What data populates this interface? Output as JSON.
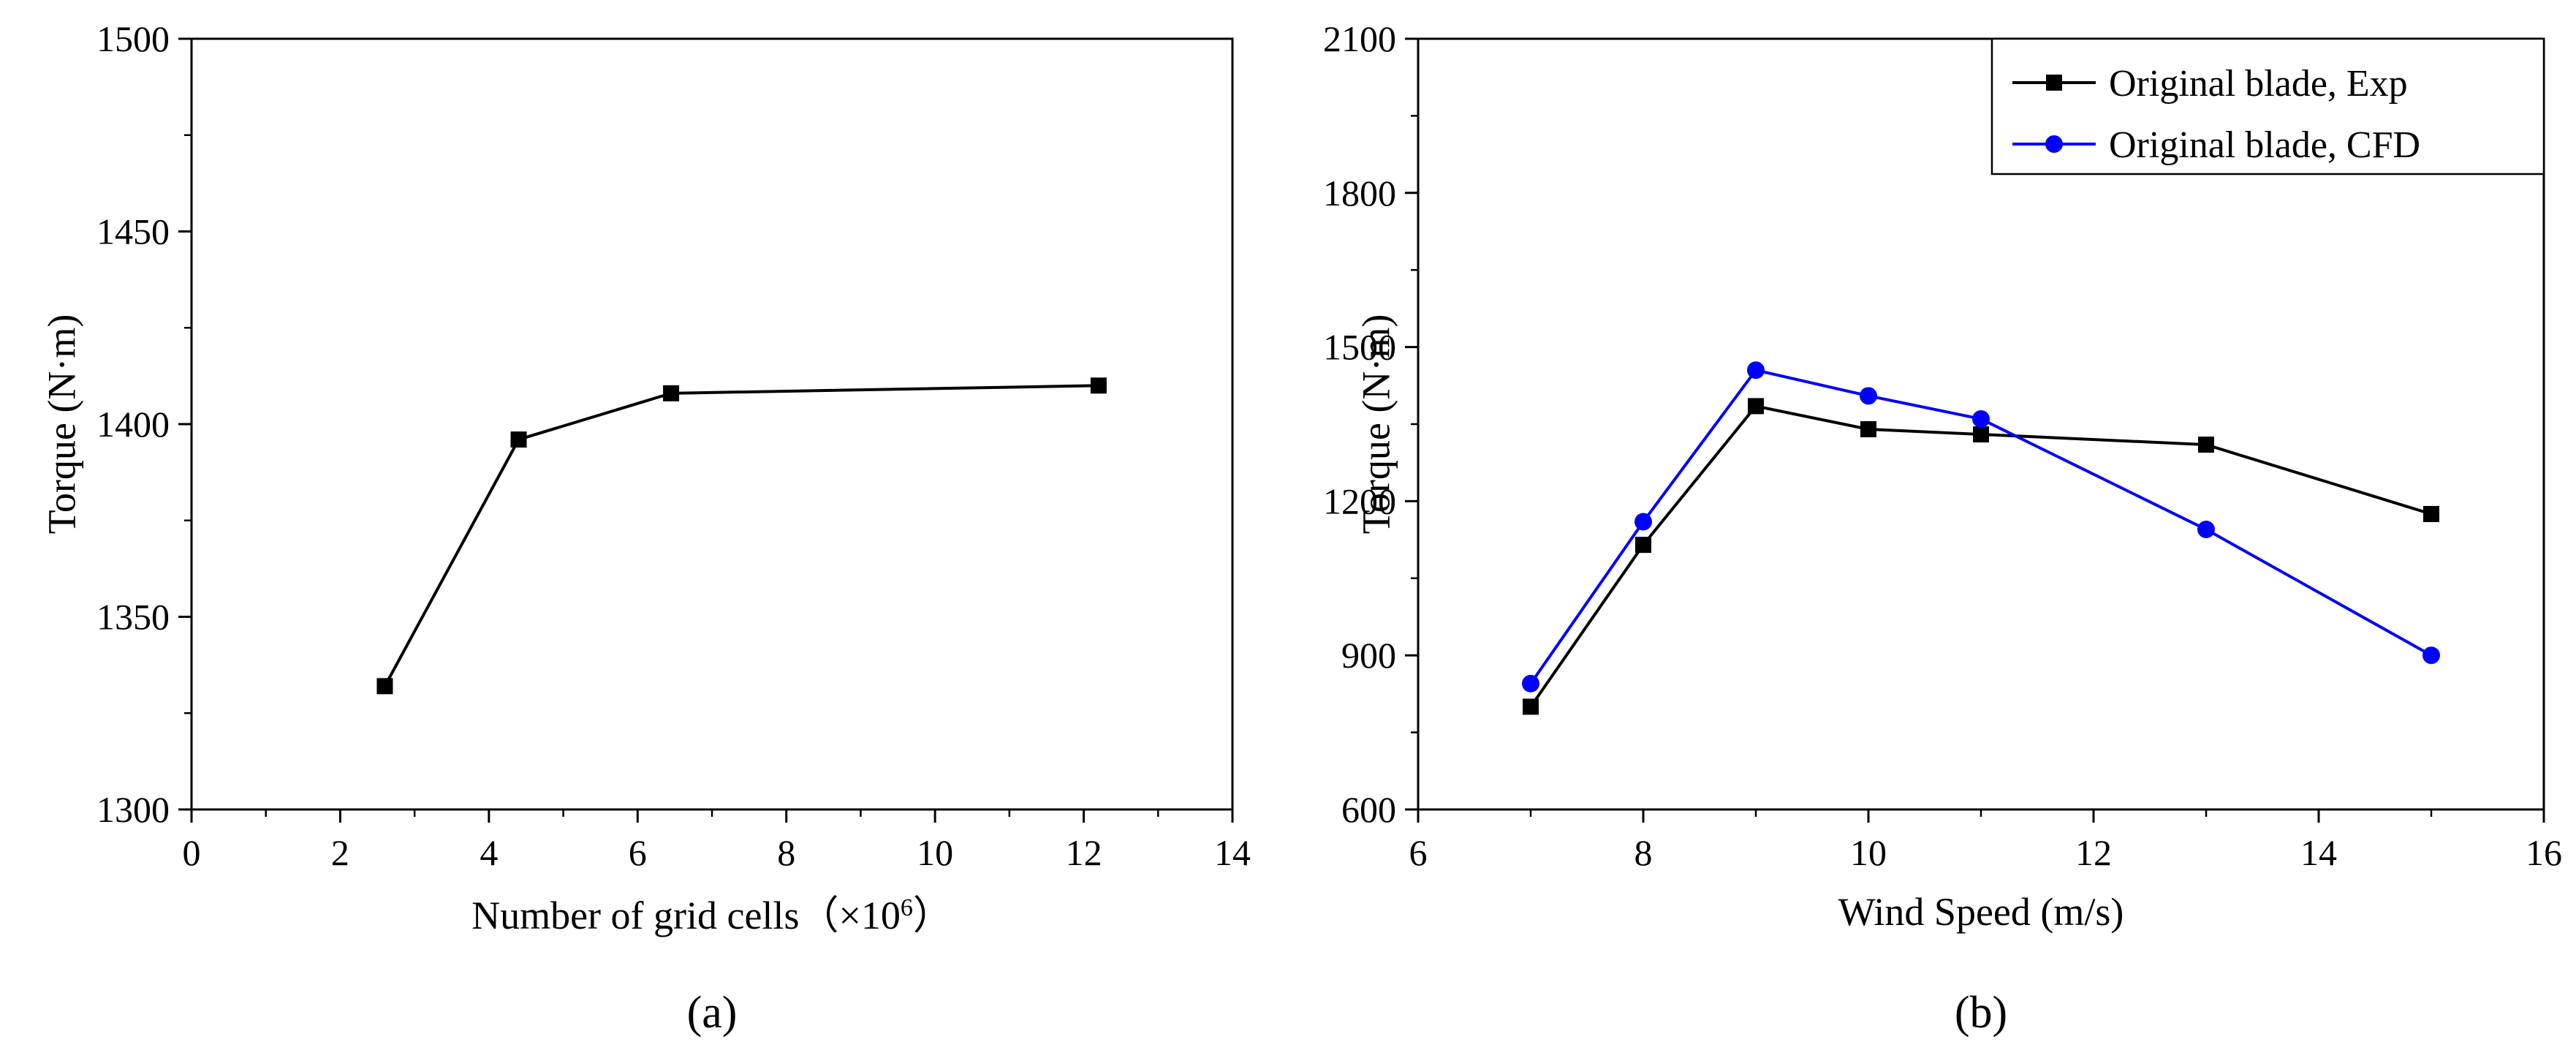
{
  "chart_data": [
    {
      "type": "line",
      "panel_label": "(a)",
      "xlabel": "Number of grid cells（×10",
      "xlabel_sup": "6",
      "xlabel_tail": "）",
      "ylabel": "Torque (N·m)",
      "xlim": [
        0,
        14
      ],
      "ylim": [
        1300,
        1500
      ],
      "xticks": [
        0,
        2,
        4,
        6,
        8,
        10,
        12,
        14
      ],
      "yticks": [
        1300,
        1350,
        1400,
        1450,
        1500
      ],
      "grid": false,
      "series": [
        {
          "color": "#000000",
          "marker": "square",
          "x": [
            2.6,
            4.4,
            6.45,
            12.2
          ],
          "y": [
            1332,
            1396,
            1408,
            1410
          ]
        }
      ]
    },
    {
      "type": "line",
      "panel_label": "(b)",
      "xlabel": "Wind Speed (m/s)",
      "ylabel": "Torque (N·m)",
      "xlim": [
        6,
        16
      ],
      "ylim": [
        600,
        2100
      ],
      "xticks": [
        6,
        8,
        10,
        12,
        14,
        16
      ],
      "yticks": [
        600,
        900,
        1200,
        1500,
        1800,
        2100
      ],
      "grid": false,
      "legend_position": "top-right",
      "series": [
        {
          "name": "Original blade, Exp",
          "color": "#000000",
          "marker": "square",
          "x": [
            7,
            8,
            9,
            10,
            11,
            13,
            15
          ],
          "y": [
            800,
            1115,
            1385,
            1340,
            1330,
            1310,
            1175
          ]
        },
        {
          "name": "Original blade, CFD",
          "color": "#0000ff",
          "marker": "circle",
          "x": [
            7,
            8,
            9,
            10,
            11,
            13,
            15
          ],
          "y": [
            845,
            1160,
            1455,
            1405,
            1360,
            1145,
            900
          ]
        }
      ]
    }
  ]
}
